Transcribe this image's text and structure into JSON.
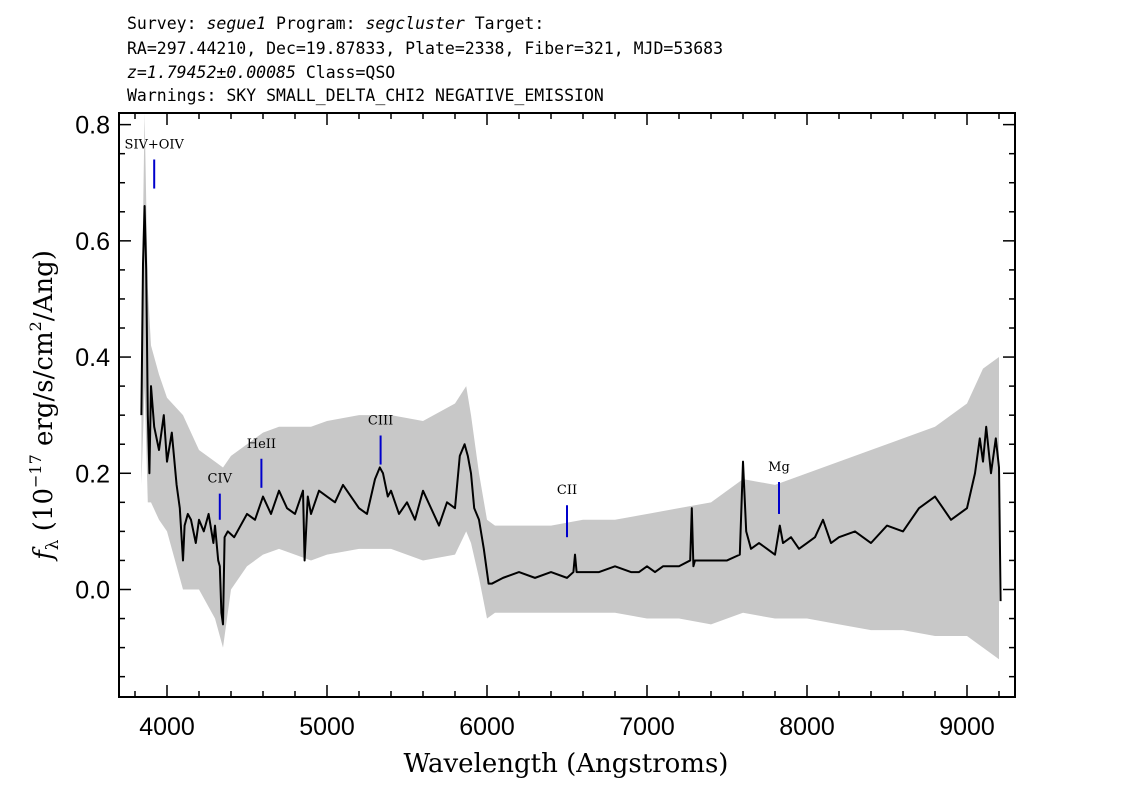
{
  "header": {
    "survey_prefix": "Survey: ",
    "survey": "segue1",
    "program_prefix": " Program: ",
    "program": "segcluster",
    "target_suffix": " Target:",
    "line2": "RA=297.44210, Dec=19.87833, Plate=2338, Fiber=321, MJD=53683",
    "z": "z=1.79452±0.00085",
    "class": " Class=QSO",
    "warnings": "Warnings: SKY SMALL_DELTA_CHI2 NEGATIVE_EMISSION"
  },
  "chart_data": {
    "type": "line",
    "xlabel": "Wavelength (Angstroms)",
    "ylabel_parts": {
      "f": "f",
      "sub": "λ",
      "pre": " (10",
      "exp1": "−17",
      "mid": " erg/s/cm",
      "exp2": "2",
      "post": "/Ang)"
    },
    "xlim": [
      3700,
      9300
    ],
    "ylim": [
      -0.185,
      0.82
    ],
    "x_ticks": [
      4000,
      5000,
      6000,
      7000,
      8000,
      9000
    ],
    "y_ticks": [
      0.0,
      0.2,
      0.4,
      0.6,
      0.8
    ],
    "y_tick_labels": [
      "0.0",
      "0.2",
      "0.4",
      "0.6",
      "0.8"
    ],
    "colors": {
      "spectrum": "#000000",
      "error_band": "#c8c8c8",
      "lines": "#0000cc"
    },
    "emission_lines": [
      {
        "label": "SIV+OIV",
        "x": 3920,
        "y_top": 0.74,
        "y_bottom": 0.69
      },
      {
        "label": "CIV",
        "x": 4330,
        "y_top": 0.165,
        "y_bottom": 0.12
      },
      {
        "label": "HeII",
        "x": 4590,
        "y_top": 0.225,
        "y_bottom": 0.175
      },
      {
        "label": "CIII",
        "x": 5335,
        "y_top": 0.265,
        "y_bottom": 0.215
      },
      {
        "label": "CII",
        "x": 6500,
        "y_top": 0.145,
        "y_bottom": 0.09
      },
      {
        "label": "Mg",
        "x": 7825,
        "y_top": 0.185,
        "y_bottom": 0.13
      }
    ],
    "series": [
      {
        "role": "flux",
        "x": [
          3840,
          3850,
          3860,
          3870,
          3880,
          3890,
          3900,
          3920,
          3950,
          3980,
          4000,
          4030,
          4060,
          4080,
          4100,
          4110,
          4130,
          4150,
          4180,
          4200,
          4230,
          4260,
          4290,
          4300,
          4320,
          4330,
          4340,
          4350,
          4360,
          4380,
          4420,
          4460,
          4500,
          4550,
          4600,
          4650,
          4700,
          4750,
          4800,
          4850,
          4860,
          4880,
          4900,
          4950,
          5000,
          5050,
          5100,
          5150,
          5200,
          5250,
          5300,
          5330,
          5350,
          5380,
          5400,
          5450,
          5500,
          5550,
          5600,
          5650,
          5700,
          5750,
          5800,
          5830,
          5860,
          5880,
          5900,
          5920,
          5950,
          5980,
          6000,
          6010,
          6030,
          6100,
          6200,
          6300,
          6400,
          6500,
          6540,
          6550,
          6560,
          6600,
          6700,
          6800,
          6900,
          6950,
          7000,
          7050,
          7100,
          7200,
          7270,
          7280,
          7290,
          7300,
          7400,
          7500,
          7580,
          7600,
          7620,
          7650,
          7700,
          7750,
          7800,
          7830,
          7850,
          7900,
          7950,
          8000,
          8050,
          8100,
          8150,
          8200,
          8300,
          8400,
          8500,
          8600,
          8700,
          8800,
          8900,
          9000,
          9050,
          9080,
          9100,
          9120,
          9150,
          9180,
          9200,
          9210
        ],
        "y": [
          0.3,
          0.56,
          0.66,
          0.55,
          0.3,
          0.2,
          0.35,
          0.28,
          0.24,
          0.3,
          0.22,
          0.27,
          0.18,
          0.14,
          0.05,
          0.11,
          0.13,
          0.12,
          0.08,
          0.12,
          0.1,
          0.13,
          0.08,
          0.11,
          0.05,
          0.04,
          -0.04,
          -0.06,
          0.09,
          0.1,
          0.09,
          0.11,
          0.13,
          0.12,
          0.16,
          0.13,
          0.17,
          0.14,
          0.13,
          0.17,
          0.05,
          0.16,
          0.13,
          0.17,
          0.16,
          0.15,
          0.18,
          0.16,
          0.14,
          0.13,
          0.19,
          0.21,
          0.2,
          0.16,
          0.17,
          0.13,
          0.15,
          0.12,
          0.17,
          0.14,
          0.11,
          0.15,
          0.14,
          0.23,
          0.25,
          0.23,
          0.2,
          0.14,
          0.12,
          0.07,
          0.03,
          0.01,
          0.01,
          0.02,
          0.03,
          0.02,
          0.03,
          0.02,
          0.03,
          0.06,
          0.03,
          0.03,
          0.03,
          0.04,
          0.03,
          0.03,
          0.04,
          0.03,
          0.04,
          0.04,
          0.05,
          0.14,
          0.04,
          0.05,
          0.05,
          0.05,
          0.06,
          0.22,
          0.1,
          0.07,
          0.08,
          0.07,
          0.06,
          0.11,
          0.08,
          0.09,
          0.07,
          0.08,
          0.09,
          0.12,
          0.08,
          0.09,
          0.1,
          0.08,
          0.11,
          0.1,
          0.14,
          0.16,
          0.12,
          0.14,
          0.2,
          0.26,
          0.22,
          0.28,
          0.2,
          0.26,
          0.21,
          -0.02
        ]
      },
      {
        "role": "error_band",
        "x": [
          3840,
          3860,
          3880,
          3900,
          3950,
          4000,
          4100,
          4200,
          4300,
          4350,
          4400,
          4500,
          4600,
          4700,
          4800,
          4900,
          5000,
          5200,
          5400,
          5600,
          5800,
          5870,
          5900,
          5950,
          6000,
          6050,
          6200,
          6400,
          6600,
          6800,
          7000,
          7200,
          7400,
          7600,
          7800,
          8000,
          8200,
          8400,
          8600,
          8800,
          9000,
          9100,
          9200
        ],
        "upper": [
          0.45,
          0.82,
          0.52,
          0.42,
          0.37,
          0.33,
          0.3,
          0.24,
          0.22,
          0.21,
          0.23,
          0.25,
          0.27,
          0.28,
          0.28,
          0.28,
          0.29,
          0.3,
          0.3,
          0.29,
          0.32,
          0.35,
          0.3,
          0.2,
          0.12,
          0.11,
          0.11,
          0.11,
          0.12,
          0.12,
          0.13,
          0.14,
          0.15,
          0.19,
          0.18,
          0.2,
          0.22,
          0.24,
          0.26,
          0.28,
          0.32,
          0.38,
          0.4
        ],
        "lower": [
          0.18,
          0.35,
          0.15,
          0.15,
          0.12,
          0.1,
          0.0,
          0.0,
          -0.05,
          -0.1,
          0.0,
          0.04,
          0.06,
          0.07,
          0.06,
          0.05,
          0.06,
          0.07,
          0.07,
          0.05,
          0.06,
          0.1,
          0.08,
          0.02,
          -0.05,
          -0.04,
          -0.04,
          -0.04,
          -0.04,
          -0.04,
          -0.05,
          -0.05,
          -0.06,
          -0.04,
          -0.05,
          -0.05,
          -0.06,
          -0.07,
          -0.07,
          -0.08,
          -0.08,
          -0.1,
          -0.12
        ]
      }
    ]
  }
}
